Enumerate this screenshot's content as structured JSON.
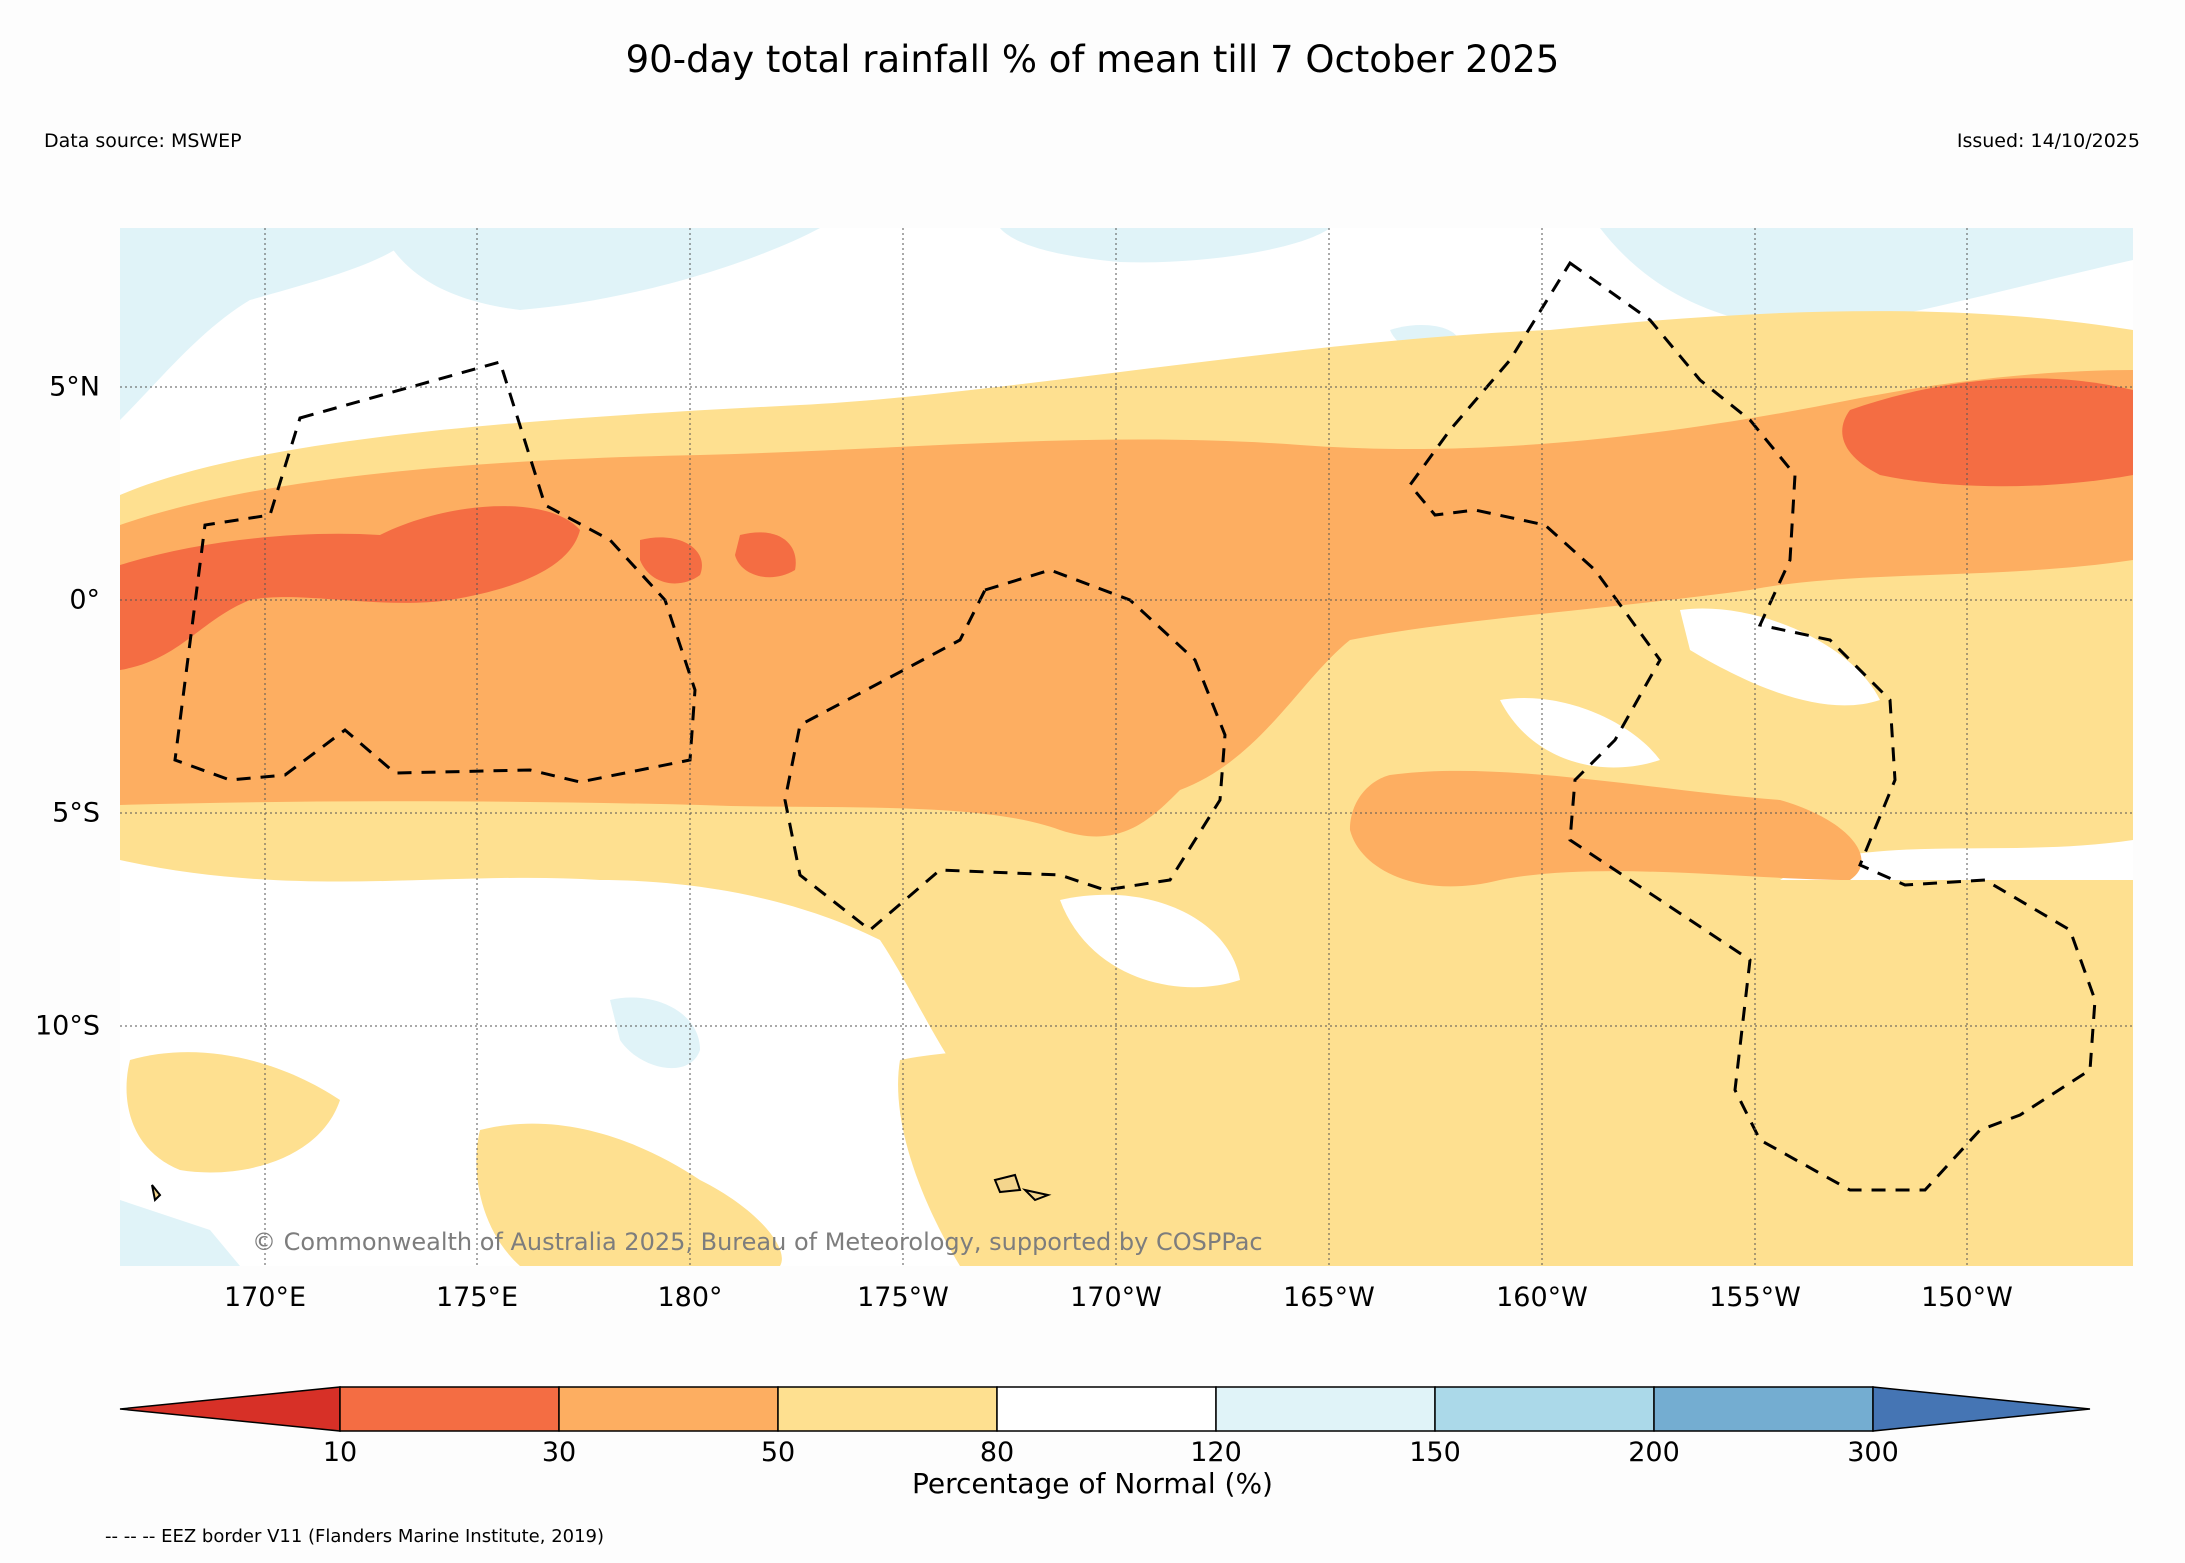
{
  "title": "90-day total rainfall % of mean till 7 October 2025",
  "data_source": "Data source: MSWEP",
  "issued": "Issued: 14/10/2025",
  "copyright": "© Commonwealth of Australia 2025, Bureau of Meteorology, supported by COSPPac",
  "legend_note": "-- -- -- EEZ border V11 (Flanders Marine Institute, 2019)",
  "colorbar": {
    "label": "Percentage of Normal (%)",
    "ticks": [
      "10",
      "30",
      "50",
      "80",
      "120",
      "150",
      "200",
      "300"
    ],
    "colors": [
      "#d73027",
      "#f46d43",
      "#fdae61",
      "#fee090",
      "#ffffff",
      "#e0f3f8",
      "#abd9e9",
      "#74add1",
      "#4575b4"
    ]
  },
  "map": {
    "lat_labels": [
      "5°N",
      "0°",
      "5°S",
      "10°S"
    ],
    "lon_labels": [
      "170°E",
      "175°E",
      "180°",
      "175°W",
      "170°W",
      "165°W",
      "160°W",
      "155°W",
      "150°W"
    ]
  }
}
